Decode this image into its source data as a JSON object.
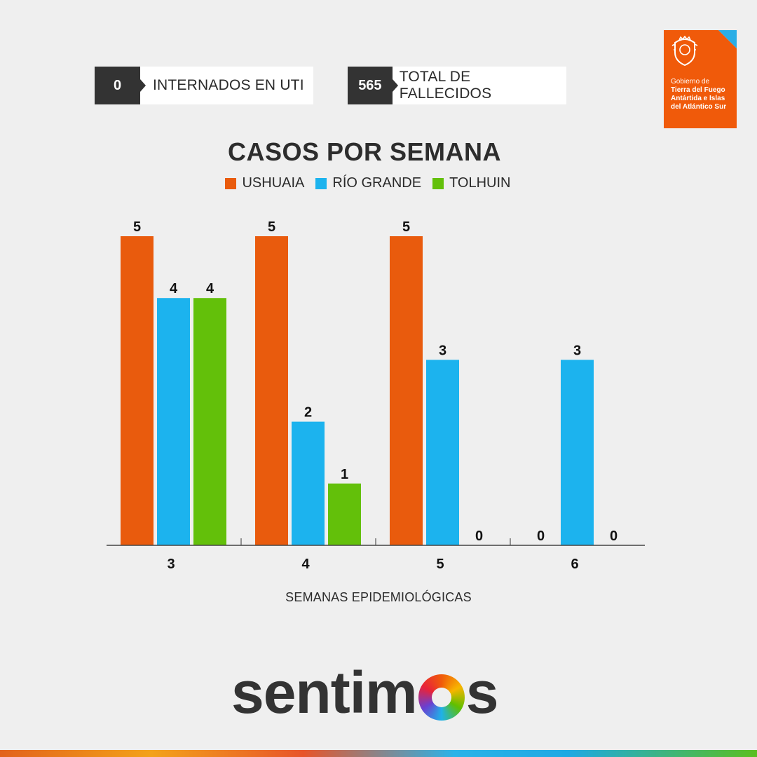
{
  "stats": {
    "uti": {
      "value": "0",
      "label": "INTERNADOS EN UTI"
    },
    "fallecidos": {
      "value": "565",
      "label": "TOTAL DE FALLECIDOS"
    }
  },
  "gov_logo": {
    "line1": "Gobierno de",
    "line2": "Tierra del Fuego Antártida e Islas del Atlántico Sur"
  },
  "brand": {
    "prefix": "sentim",
    "suffix": "s"
  },
  "chart_data": {
    "type": "bar",
    "title": "CASOS POR SEMANA",
    "xlabel": "SEMANAS EPIDEMIOLÓGICAS",
    "ylabel": "",
    "categories": [
      "3",
      "4",
      "5",
      "6"
    ],
    "series": [
      {
        "name": "USHUAIA",
        "color": "#e95b0d",
        "values": [
          5,
          5,
          5,
          0
        ]
      },
      {
        "name": "RÍO GRANDE",
        "color": "#1cb3ee",
        "values": [
          4,
          2,
          3,
          3
        ]
      },
      {
        "name": "TOLHUIN",
        "color": "#63c00a",
        "values": [
          4,
          1,
          0,
          0
        ]
      }
    ],
    "ylim": [
      0,
      5
    ],
    "grid": false,
    "legend": "top-center",
    "data_labels": true
  }
}
